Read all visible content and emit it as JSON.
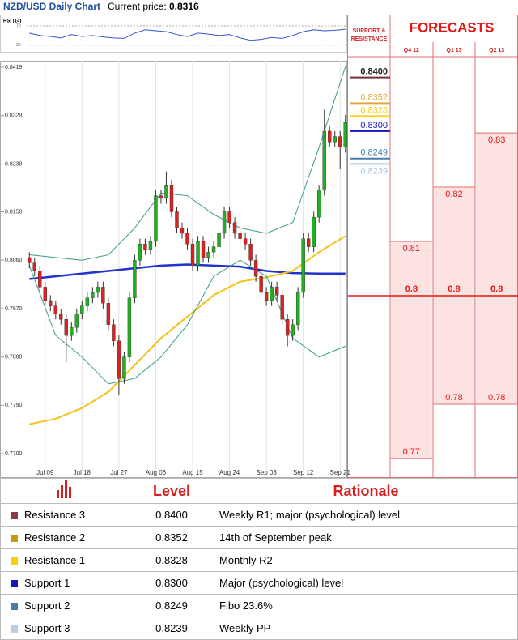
{
  "chart_data": [
    {
      "type": "candlestick",
      "title": "NZD/USD Daily Chart",
      "current_price_label": "Current price:",
      "current_price": 0.8316,
      "up_color": "#22b022",
      "down_color": "#dd2020",
      "open": [
        0.8065,
        0.8055,
        0.804,
        0.801,
        0.7985,
        0.7975,
        0.796,
        0.795,
        0.792,
        0.7935,
        0.796,
        0.7975,
        0.799,
        0.8,
        0.801,
        0.798,
        0.794,
        0.791,
        0.784,
        0.788,
        0.799,
        0.806,
        0.809,
        0.808,
        0.8095,
        0.818,
        0.8175,
        0.82,
        0.815,
        0.812,
        0.811,
        0.809,
        0.805,
        0.8095,
        0.8065,
        0.8075,
        0.8085,
        0.811,
        0.815,
        0.813,
        0.811,
        0.81,
        0.809,
        0.806,
        0.803,
        0.8,
        0.7985,
        0.801,
        0.7995,
        0.795,
        0.792,
        0.794,
        0.8,
        0.81,
        0.8085,
        0.814,
        0.819,
        0.83,
        0.828,
        0.829,
        0.827
      ],
      "high": [
        0.8075,
        0.8065,
        0.805,
        0.802,
        0.7995,
        0.7985,
        0.797,
        0.796,
        0.7945,
        0.797,
        0.7985,
        0.8,
        0.801,
        0.802,
        0.802,
        0.799,
        0.795,
        0.792,
        0.789,
        0.8,
        0.807,
        0.81,
        0.81,
        0.8105,
        0.819,
        0.819,
        0.8225,
        0.821,
        0.816,
        0.813,
        0.812,
        0.81,
        0.8105,
        0.8105,
        0.8085,
        0.8095,
        0.812,
        0.816,
        0.816,
        0.814,
        0.812,
        0.811,
        0.81,
        0.807,
        0.804,
        0.801,
        0.802,
        0.802,
        0.8005,
        0.796,
        0.795,
        0.801,
        0.811,
        0.811,
        0.815,
        0.82,
        0.834,
        0.831,
        0.83,
        0.83,
        0.833
      ],
      "low": [
        0.8045,
        0.803,
        0.8,
        0.7975,
        0.7965,
        0.795,
        0.794,
        0.787,
        0.791,
        0.7925,
        0.795,
        0.7965,
        0.798,
        0.799,
        0.797,
        0.793,
        0.79,
        0.781,
        0.783,
        0.787,
        0.798,
        0.805,
        0.807,
        0.807,
        0.8085,
        0.8165,
        0.8165,
        0.814,
        0.811,
        0.81,
        0.808,
        0.804,
        0.804,
        0.8055,
        0.8055,
        0.8065,
        0.8075,
        0.81,
        0.812,
        0.81,
        0.809,
        0.808,
        0.805,
        0.802,
        0.799,
        0.7975,
        0.7975,
        0.7985,
        0.794,
        0.79,
        0.791,
        0.793,
        0.799,
        0.8075,
        0.8075,
        0.813,
        0.818,
        0.827,
        0.827,
        0.823,
        0.826
      ],
      "close": [
        0.8055,
        0.804,
        0.801,
        0.7985,
        0.7975,
        0.796,
        0.795,
        0.792,
        0.7935,
        0.796,
        0.7975,
        0.799,
        0.8,
        0.801,
        0.798,
        0.794,
        0.791,
        0.784,
        0.788,
        0.799,
        0.806,
        0.809,
        0.808,
        0.8095,
        0.818,
        0.8175,
        0.82,
        0.815,
        0.812,
        0.811,
        0.809,
        0.805,
        0.8095,
        0.8065,
        0.8075,
        0.8085,
        0.811,
        0.815,
        0.813,
        0.811,
        0.81,
        0.809,
        0.806,
        0.803,
        0.8,
        0.7985,
        0.801,
        0.7995,
        0.795,
        0.792,
        0.794,
        0.8,
        0.81,
        0.8085,
        0.814,
        0.819,
        0.83,
        0.828,
        0.829,
        0.827,
        0.8316
      ],
      "overlays": [
        {
          "color": "#2233cc",
          "width": 2.5,
          "x": [
            0,
            5,
            10,
            15,
            20,
            25,
            30,
            35,
            40,
            45,
            50,
            55,
            60
          ],
          "values": [
            0.8025,
            0.803,
            0.8035,
            0.804,
            0.8045,
            0.805,
            0.8052,
            0.805,
            0.8048,
            0.804,
            0.8036,
            0.8035,
            0.8035
          ]
        },
        {
          "color": "#f2c218",
          "width": 2,
          "x": [
            0,
            5,
            10,
            15,
            20,
            25,
            30,
            35,
            40,
            45,
            50,
            55,
            60
          ],
          "values": [
            0.7755,
            0.7765,
            0.7785,
            0.7815,
            0.7865,
            0.7915,
            0.7955,
            0.7995,
            0.802,
            0.8028,
            0.804,
            0.8075,
            0.8105
          ]
        },
        {
          "color": "#3a9a8a",
          "width": 1,
          "x": [
            0,
            5,
            10,
            15,
            20,
            25,
            30,
            35,
            40,
            45,
            50,
            55,
            60
          ],
          "values": [
            0.807,
            0.8065,
            0.806,
            0.807,
            0.812,
            0.8185,
            0.818,
            0.8145,
            0.812,
            0.811,
            0.813,
            0.827,
            0.842
          ]
        },
        {
          "color": "#3a9a8a",
          "width": 1,
          "x": [
            0,
            5,
            10,
            15,
            20,
            25,
            30,
            35,
            40,
            45,
            50,
            55,
            60
          ],
          "values": [
            0.805,
            0.792,
            0.788,
            0.783,
            0.784,
            0.788,
            0.794,
            0.803,
            0.806,
            0.803,
            0.7915,
            0.788,
            0.79
          ]
        }
      ],
      "xlim": [
        -0.5,
        60.5
      ],
      "ylim": [
        0.767,
        0.8431
      ],
      "yticks": [
        0.8419,
        0.8329,
        0.8239,
        {
          "value": 0.815,
          "label": "0.8150"
        },
        {
          "value": 0.806,
          "label": "0.8060"
        },
        {
          "value": 0.797,
          "label": "0.7970"
        },
        {
          "value": 0.788,
          "label": "0.7880"
        },
        {
          "value": 0.779,
          "label": "0.7790"
        },
        {
          "value": 0.77,
          "label": "0.7700"
        }
      ],
      "xticks": [
        {
          "value": 3,
          "label": "Jul 09"
        },
        {
          "value": 10,
          "label": "Jul 18"
        },
        {
          "value": 17,
          "label": "Jul 27"
        },
        {
          "value": 24,
          "label": "Aug 06"
        },
        {
          "value": 31,
          "label": "Aug 15"
        },
        {
          "value": 38,
          "label": "Aug 24"
        },
        {
          "value": 45,
          "label": "Sep 03"
        },
        {
          "value": 52,
          "label": "Sep 12"
        },
        {
          "value": 59,
          "label": "Sep 21"
        }
      ],
      "grid": true,
      "levels": {
        "title": "SUPPORT & RESISTANCE",
        "values": [
          0.84,
          0.8352,
          0.8328,
          0.83,
          0.8249,
          0.8239
        ],
        "value_labels": [
          "0.8400",
          "0.8352",
          "0.8328",
          "0.8300",
          "0.8249",
          "0.8239"
        ],
        "colors": [
          "#7b2a3a",
          "#e0a840",
          "#f5cf10",
          "#1515c0",
          "#4a7ea8",
          "#a9c4dd"
        ]
      }
    },
    {
      "type": "line",
      "title": "RSI (14)",
      "color": "#3355cc",
      "x": [
        0,
        2,
        4,
        6,
        8,
        10,
        12,
        14,
        16,
        18,
        20,
        22,
        24,
        26,
        28,
        30,
        32,
        34,
        36,
        38,
        40,
        42,
        44,
        46,
        48,
        50,
        52,
        54,
        56,
        58,
        60
      ],
      "values": [
        55,
        50,
        48,
        45,
        52,
        48,
        50,
        47,
        45,
        44,
        55,
        62,
        60,
        58,
        52,
        48,
        55,
        53,
        50,
        52,
        45,
        40,
        42,
        46,
        44,
        50,
        58,
        62,
        60,
        61,
        63
      ],
      "xlim": [
        -0.5,
        60.5
      ],
      "ylim": [
        16,
        92
      ],
      "yticks": [
        30,
        70
      ]
    },
    {
      "type": "range",
      "title": "FORECASTS",
      "categories": [
        "Q4 12",
        "Q1 13",
        "Q2 13"
      ],
      "upper": [
        0.81,
        0.82,
        0.83
      ],
      "center": [
        0.8,
        0.8,
        0.8
      ],
      "lower": [
        0.77,
        0.78,
        0.78
      ],
      "fill": "#fde2e2",
      "color": "#e01818",
      "ylim": [
        0.7679,
        0.8433
      ]
    }
  ],
  "table": {
    "headers": [
      "Level",
      "Rationale"
    ],
    "rows": [
      {
        "name": "Resistance 3",
        "color": "#8b3a4a",
        "rationale": "Weekly R1; major (psychological) level"
      },
      {
        "name": "Resistance 2",
        "color": "#c89a10",
        "rationale": "14th of September peak"
      },
      {
        "name": "Resistance 1",
        "color": "#f5cf10",
        "rationale": "Monthly R2"
      },
      {
        "name": "Support 1",
        "color": "#1515c0",
        "rationale": "Major (psychological) level"
      },
      {
        "name": "Support 2",
        "color": "#4a7ea8",
        "rationale": "Fibo 23.6%"
      },
      {
        "name": "Support 3",
        "color": "#b8cce4",
        "rationale": "Weekly PP"
      }
    ]
  }
}
